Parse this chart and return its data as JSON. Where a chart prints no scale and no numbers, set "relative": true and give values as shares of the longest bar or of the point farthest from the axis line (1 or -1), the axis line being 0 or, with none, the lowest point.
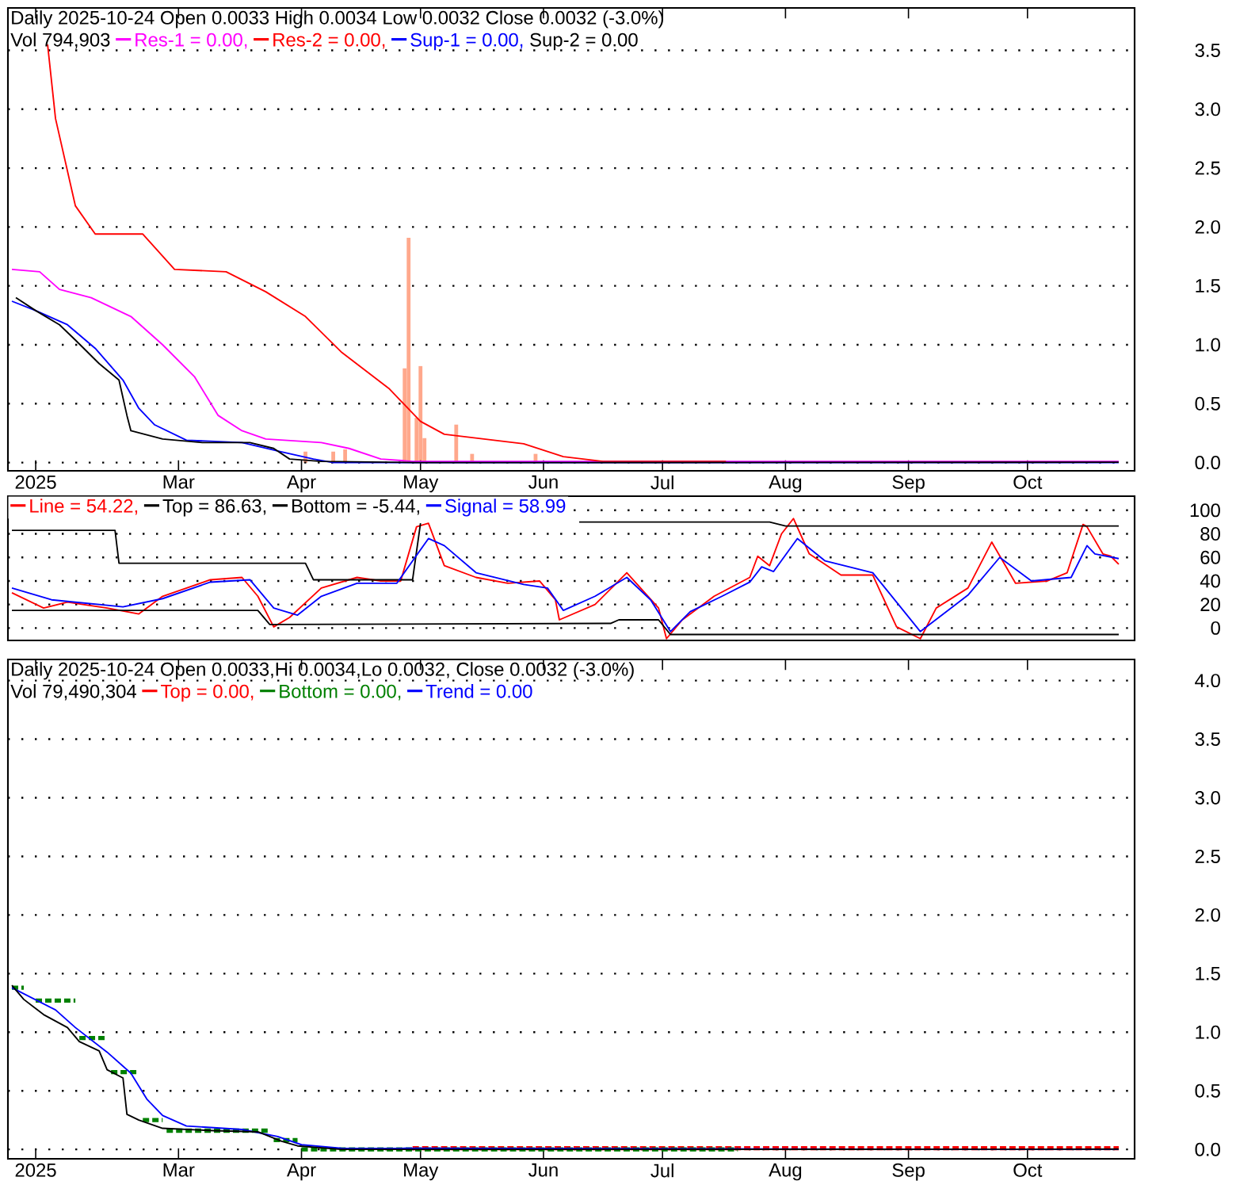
{
  "chart_data": [
    {
      "type": "line",
      "title": "Daily 2025-10-24 Open 0.0033  High 0.0034  Low 0.0032  Close 0.0032 (-3.0%)",
      "subtitle": "Vol 794,903",
      "annotations": [
        "Sup-2 = 0.00"
      ],
      "xlim": [
        "2025-01-17",
        "2025-10-28"
      ],
      "xticks": [
        {
          "value": "2025-01-24",
          "label": "2025"
        },
        {
          "value": "2025-03-01",
          "label": "Mar"
        },
        {
          "value": "2025-04-01",
          "label": "Apr"
        },
        {
          "value": "2025-05-01",
          "label": "May"
        },
        {
          "value": "2025-06-01",
          "label": "Jun"
        },
        {
          "value": "2025-07-01",
          "label": "Jul"
        },
        {
          "value": "2025-08-01",
          "label": "Aug"
        },
        {
          "value": "2025-09-01",
          "label": "Sep"
        },
        {
          "value": "2025-10-01",
          "label": "Oct"
        }
      ],
      "ylim": [
        -0.07,
        3.86
      ],
      "yticks": [
        {
          "value": 0,
          "label": "0.0"
        },
        {
          "value": 0.5,
          "label": "0.5"
        },
        {
          "value": 1,
          "label": "1.0"
        },
        {
          "value": 1.5,
          "label": "1.5"
        },
        {
          "value": 2,
          "label": "2.0"
        },
        {
          "value": 2.5,
          "label": "2.5"
        },
        {
          "value": 3,
          "label": "3.0"
        },
        {
          "value": 3.5,
          "label": "3.5"
        }
      ],
      "grid": "y",
      "legend": "top left",
      "series": [
        {
          "name": "Res-1 = 0.00,",
          "color": "#ff00ff",
          "x": [
            "2025-01-18",
            "2025-01-25",
            "2025-01-30",
            "2025-02-07",
            "2025-02-17",
            "2025-02-25",
            "2025-03-05",
            "2025-03-11",
            "2025-03-17",
            "2025-03-23",
            "2025-04-06",
            "2025-04-13",
            "2025-04-21",
            "2025-04-29",
            "2025-10-24"
          ],
          "values": [
            1.64,
            1.62,
            1.47,
            1.4,
            1.24,
            1.0,
            0.73,
            0.4,
            0.27,
            0.2,
            0.17,
            0.12,
            0.03,
            0.01,
            0.01
          ]
        },
        {
          "name": "Res-2 = 0.00,",
          "color": "#ff0000",
          "x": [
            "2025-01-27",
            "2025-01-29",
            "2025-02-03",
            "2025-02-08",
            "2025-02-20",
            "2025-02-28",
            "2025-03-13",
            "2025-03-23",
            "2025-04-02",
            "2025-04-11",
            "2025-04-23",
            "2025-05-01",
            "2025-05-07",
            "2025-05-27",
            "2025-06-06",
            "2025-06-16",
            "2025-07-17"
          ],
          "values": [
            3.55,
            2.92,
            2.18,
            1.94,
            1.94,
            1.64,
            1.62,
            1.45,
            1.24,
            0.94,
            0.63,
            0.35,
            0.24,
            0.16,
            0.05,
            0.01,
            0.01
          ]
        },
        {
          "name": "Sup-1 = 0.00,",
          "color": "#0000ff",
          "x": [
            "2025-01-18",
            "2025-01-24",
            "2025-02-01",
            "2025-02-08",
            "2025-02-15",
            "2025-02-19",
            "2025-02-23",
            "2025-03-03",
            "2025-03-17",
            "2025-03-27",
            "2025-04-04",
            "2025-04-09",
            "2025-10-24"
          ],
          "values": [
            1.37,
            1.29,
            1.17,
            0.97,
            0.7,
            0.46,
            0.32,
            0.19,
            0.17,
            0.09,
            0.03,
            0.0,
            0.0
          ]
        },
        {
          "color": "#000000",
          "x": [
            "2025-01-19",
            "2025-01-24",
            "2025-01-30",
            "2025-02-03",
            "2025-02-09",
            "2025-02-14",
            "2025-02-16",
            "2025-02-17",
            "2025-02-25",
            "2025-03-07",
            "2025-03-19",
            "2025-03-25",
            "2025-03-29",
            "2025-04-06",
            "2025-04-30",
            "2025-06-30",
            "2025-10-24"
          ],
          "values": [
            1.4,
            1.29,
            1.17,
            1.04,
            0.84,
            0.7,
            0.4,
            0.27,
            0.2,
            0.17,
            0.17,
            0.12,
            0.03,
            0.01,
            0.0,
            0.0,
            0.0032
          ]
        }
      ]
    },
    {
      "type": "line",
      "xlim": [
        "2025-01-17",
        "2025-10-28"
      ],
      "ylim": [
        -10.5,
        112
      ],
      "yticks": [
        0,
        20,
        40,
        60,
        80,
        100
      ],
      "tick_labels": "y",
      "grid": "y",
      "legend": "top left",
      "series": [
        {
          "name": "Line = 54.22,",
          "color": "#ff0000",
          "x": [
            "2025-01-18",
            "2025-01-26",
            "2025-02-01",
            "2025-02-11",
            "2025-02-19",
            "2025-02-25",
            "2025-03-09",
            "2025-03-17",
            "2025-03-21",
            "2025-03-25",
            "2025-03-29",
            "2025-04-06",
            "2025-04-15",
            "2025-04-21",
            "2025-04-26",
            "2025-04-30",
            "2025-05-03",
            "2025-05-07",
            "2025-05-15",
            "2025-05-23",
            "2025-05-31",
            "2025-06-04",
            "2025-06-05",
            "2025-06-14",
            "2025-06-22",
            "2025-06-30",
            "2025-07-02",
            "2025-07-06",
            "2025-07-14",
            "2025-07-23",
            "2025-07-25",
            "2025-07-28",
            "2025-07-31",
            "2025-08-03",
            "2025-08-07",
            "2025-08-15",
            "2025-08-23",
            "2025-08-29",
            "2025-09-04",
            "2025-09-08",
            "2025-09-16",
            "2025-09-22",
            "2025-09-28",
            "2025-10-06",
            "2025-10-11",
            "2025-10-15",
            "2025-10-16",
            "2025-10-20",
            "2025-10-22",
            "2025-10-24"
          ],
          "values": [
            30,
            17,
            22,
            17,
            12,
            27,
            41,
            43,
            27,
            1,
            9,
            34,
            43,
            40,
            40,
            86,
            89,
            53,
            43,
            38,
            40,
            24,
            7,
            20,
            47,
            17,
            -9,
            7,
            27,
            43,
            61,
            53,
            80,
            93,
            63,
            45,
            45,
            1,
            -9,
            17,
            34,
            73,
            38,
            40,
            47,
            88,
            86,
            63,
            61,
            54.22
          ]
        },
        {
          "name": "Top = 86.63,",
          "color": "#000000",
          "x": [
            "2025-01-18",
            "2025-02-13",
            "2025-02-14",
            "2025-04-02",
            "2025-04-04",
            "2025-04-29",
            "2025-05-01",
            "2025-05-20",
            "2025-06-10",
            "2025-07-28",
            "2025-08-01",
            "2025-10-24"
          ],
          "values": [
            83,
            83,
            55,
            55,
            41,
            41,
            89,
            null,
            90,
            90,
            86.63,
            86.63
          ]
        },
        {
          "name": "Bottom = -5.44,",
          "color": "#000000",
          "x": [
            "2025-01-18",
            "2025-03-21",
            "2025-03-24",
            "2025-06-18",
            "2025-06-20",
            "2025-06-30",
            "2025-07-03",
            "2025-10-24"
          ],
          "values": [
            15,
            15,
            3,
            4,
            7,
            7,
            -5.44,
            -5.44
          ]
        },
        {
          "name": "Signal = 58.99",
          "color": "#0000ff",
          "x": [
            "2025-01-18",
            "2025-01-28",
            "2025-02-15",
            "2025-02-25",
            "2025-03-09",
            "2025-03-19",
            "2025-03-25",
            "2025-03-31",
            "2025-04-06",
            "2025-04-15",
            "2025-04-25",
            "2025-05-03",
            "2025-05-07",
            "2025-05-15",
            "2025-05-27",
            "2025-06-02",
            "2025-06-06",
            "2025-06-14",
            "2025-06-22",
            "2025-06-28",
            "2025-07-03",
            "2025-07-08",
            "2025-07-16",
            "2025-07-23",
            "2025-07-26",
            "2025-07-29",
            "2025-08-04",
            "2025-08-11",
            "2025-08-23",
            "2025-09-04",
            "2025-09-16",
            "2025-09-24",
            "2025-10-02",
            "2025-10-12",
            "2025-10-16",
            "2025-10-18",
            "2025-10-24"
          ],
          "values": [
            34,
            24,
            18,
            25,
            39,
            41,
            17,
            11,
            27,
            38,
            38,
            76,
            70,
            47,
            37,
            34,
            15,
            27,
            43,
            24,
            -3,
            14,
            27,
            39,
            52,
            48,
            76,
            57,
            47,
            -3,
            28,
            60,
            40,
            43,
            70,
            63,
            58.99
          ]
        }
      ]
    },
    {
      "type": "line",
      "title": "Daily 2025-10-24 Open 0.0033,Hi 0.0034,Lo 0.0032, Close 0.0032 (-3.0%)",
      "subtitle": "Vol 79,490,304",
      "xlim": [
        "2025-01-17",
        "2025-10-28"
      ],
      "xticks": [
        {
          "value": "2025-01-24",
          "label": "2025"
        },
        {
          "value": "2025-03-01",
          "label": "Mar"
        },
        {
          "value": "2025-04-01",
          "label": "Apr"
        },
        {
          "value": "2025-05-01",
          "label": "May"
        },
        {
          "value": "2025-06-01",
          "label": "Jun"
        },
        {
          "value": "2025-07-01",
          "label": "Jul"
        },
        {
          "value": "2025-08-01",
          "label": "Aug"
        },
        {
          "value": "2025-09-01",
          "label": "Sep"
        },
        {
          "value": "2025-10-01",
          "label": "Oct"
        }
      ],
      "ylim": [
        -0.08,
        4.18
      ],
      "yticks": [
        {
          "value": 0,
          "label": "0.0"
        },
        {
          "value": 0.5,
          "label": "0.5"
        },
        {
          "value": 1,
          "label": "1.0"
        },
        {
          "value": 1.5,
          "label": "1.5"
        },
        {
          "value": 2,
          "label": "2.0"
        },
        {
          "value": 2.5,
          "label": "2.5"
        },
        {
          "value": 3,
          "label": "3.0"
        },
        {
          "value": 3.5,
          "label": "3.5"
        },
        {
          "value": 4,
          "label": "4.0"
        }
      ],
      "grid": "y",
      "legend": "top left",
      "series": [
        {
          "name": "Top = 0.00,",
          "color": "#ff0000",
          "line_style": "dashed",
          "x": [
            "2025-04-29",
            "2025-10-24"
          ],
          "values": [
            0.01,
            0.01
          ]
        },
        {
          "name": "Bottom = 0.00,",
          "color": "#008000",
          "line_style": "dashed",
          "x": [
            "2025-01-18",
            "2025-01-21",
            "2025-01-22",
            "2025-01-24",
            "2025-02-03",
            "2025-02-03T12:00",
            "2025-02-04",
            "2025-02-11",
            "2025-02-11T12:00",
            "2025-02-12",
            "2025-02-19",
            "2025-02-19T12:00",
            "2025-02-20",
            "2025-02-25",
            "2025-02-25T12:00",
            "2025-02-26",
            "2025-03-24",
            "2025-03-24T12:00",
            "2025-03-25",
            "2025-03-31",
            "2025-03-31T12:00",
            "2025-04-01",
            "2025-07-20"
          ],
          "values": [
            1.38,
            1.38,
            null,
            1.27,
            1.27,
            null,
            0.95,
            0.95,
            null,
            0.66,
            0.66,
            null,
            0.25,
            0.25,
            null,
            0.16,
            0.16,
            null,
            0.08,
            0.08,
            null,
            0.0,
            0.0
          ]
        },
        {
          "name": "Trend = 0.00",
          "color": "#0000ff",
          "x": [
            "2025-01-18",
            "2025-01-29",
            "2025-02-03",
            "2025-02-11",
            "2025-02-17",
            "2025-02-21",
            "2025-02-25",
            "2025-03-03",
            "2025-03-17",
            "2025-03-26",
            "2025-04-01",
            "2025-04-11",
            "2025-10-24"
          ],
          "values": [
            1.38,
            1.19,
            1.04,
            0.83,
            0.65,
            0.43,
            0.29,
            0.2,
            0.17,
            0.11,
            0.04,
            0.01,
            0.0
          ]
        },
        {
          "color": "#000000",
          "x": [
            "2025-01-18",
            "2025-01-21",
            "2025-01-26",
            "2025-02-01",
            "2025-02-04",
            "2025-02-09",
            "2025-02-11",
            "2025-02-15",
            "2025-02-16",
            "2025-02-19",
            "2025-02-25",
            "2025-03-10",
            "2025-03-21",
            "2025-03-27",
            "2025-03-31",
            "2025-04-11",
            "2025-06-30",
            "2025-10-24"
          ],
          "values": [
            1.4,
            1.28,
            1.15,
            1.04,
            0.92,
            0.84,
            0.68,
            0.61,
            0.3,
            0.25,
            0.18,
            0.16,
            0.15,
            0.07,
            0.03,
            0.0,
            0.0,
            0.0032
          ]
        }
      ]
    },
    {
      "type": "bar",
      "relative": true,
      "xlim": [
        "2025-01-17",
        "2025-10-28"
      ],
      "color": "#ffa88c",
      "x": [
        "2025-04-02",
        "2025-04-09",
        "2025-04-12",
        "2025-04-27",
        "2025-04-28",
        "2025-04-30",
        "2025-05-01",
        "2025-05-02",
        "2025-05-10",
        "2025-05-14",
        "2025-05-30"
      ],
      "values": [
        0.05,
        0.05,
        0.06,
        0.42,
        1.0,
        0.2,
        0.43,
        0.11,
        0.17,
        0.04,
        0.04
      ]
    }
  ]
}
